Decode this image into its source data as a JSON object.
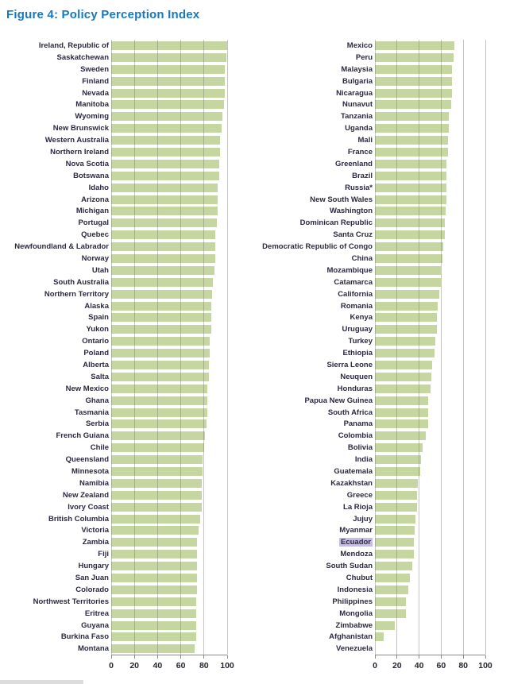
{
  "figure": {
    "title": "Figure 4: Policy Perception Index"
  },
  "colors": {
    "title": "#1878BE",
    "label": "#2B2940",
    "bar": "#C6D6A0",
    "gridline": "#6E6E6E",
    "axis_line": "#8A8A8A",
    "highlight_bg": "#C6BCE6"
  },
  "chart_data": {
    "type": "bar",
    "orientation": "horizontal",
    "title": "Figure 4: Policy Perception Index",
    "xlabel": "",
    "ylabel": "",
    "xlim": [
      0,
      100
    ],
    "ticks": [
      0,
      20,
      40,
      60,
      80,
      100
    ],
    "grid": true,
    "legend": false,
    "highlighted_category": "Ecuador",
    "panels": [
      {
        "id": "left",
        "items": [
          {
            "label": "Ireland, Republic of",
            "value": 100
          },
          {
            "label": "Saskatchewan",
            "value": 99
          },
          {
            "label": "Sweden",
            "value": 98
          },
          {
            "label": "Finland",
            "value": 98
          },
          {
            "label": "Nevada",
            "value": 98
          },
          {
            "label": "Manitoba",
            "value": 97
          },
          {
            "label": "Wyoming",
            "value": 96
          },
          {
            "label": "New Brunswick",
            "value": 95
          },
          {
            "label": "Western Australia",
            "value": 94
          },
          {
            "label": "Northern Ireland",
            "value": 94
          },
          {
            "label": "Nova Scotia",
            "value": 93
          },
          {
            "label": "Botswana",
            "value": 93
          },
          {
            "label": "Idaho",
            "value": 92
          },
          {
            "label": "Arizona",
            "value": 92
          },
          {
            "label": "Michigan",
            "value": 92
          },
          {
            "label": "Portugal",
            "value": 91
          },
          {
            "label": "Quebec",
            "value": 90
          },
          {
            "label": "Newfoundland & Labrador",
            "value": 90
          },
          {
            "label": "Norway",
            "value": 90
          },
          {
            "label": "Utah",
            "value": 89
          },
          {
            "label": "South Australia",
            "value": 88
          },
          {
            "label": "Northern Territory",
            "value": 87
          },
          {
            "label": "Alaska",
            "value": 86
          },
          {
            "label": "Spain",
            "value": 86
          },
          {
            "label": "Yukon",
            "value": 86
          },
          {
            "label": "Ontario",
            "value": 85
          },
          {
            "label": "Poland",
            "value": 85
          },
          {
            "label": "Alberta",
            "value": 84
          },
          {
            "label": "Salta",
            "value": 84
          },
          {
            "label": "New Mexico",
            "value": 83
          },
          {
            "label": "Ghana",
            "value": 83
          },
          {
            "label": "Tasmania",
            "value": 83
          },
          {
            "label": "Serbia",
            "value": 82
          },
          {
            "label": "French Guiana",
            "value": 81
          },
          {
            "label": "Chile",
            "value": 80
          },
          {
            "label": "Queensland",
            "value": 79
          },
          {
            "label": "Minnesota",
            "value": 79
          },
          {
            "label": "Namibia",
            "value": 78
          },
          {
            "label": "New Zealand",
            "value": 78
          },
          {
            "label": "Ivory Coast",
            "value": 78
          },
          {
            "label": "British Columbia",
            "value": 77
          },
          {
            "label": "Victoria",
            "value": 75
          },
          {
            "label": "Zambia",
            "value": 74
          },
          {
            "label": "Fiji",
            "value": 74
          },
          {
            "label": "Hungary",
            "value": 74
          },
          {
            "label": "San Juan",
            "value": 74
          },
          {
            "label": "Colorado",
            "value": 74
          },
          {
            "label": "Northwest Territories",
            "value": 73
          },
          {
            "label": "Eritrea",
            "value": 73
          },
          {
            "label": "Guyana",
            "value": 73
          },
          {
            "label": "Burkina Faso",
            "value": 73
          },
          {
            "label": "Montana",
            "value": 72
          }
        ]
      },
      {
        "id": "right",
        "items": [
          {
            "label": "Mexico",
            "value": 72
          },
          {
            "label": "Peru",
            "value": 71
          },
          {
            "label": "Malaysia",
            "value": 70
          },
          {
            "label": "Bulgaria",
            "value": 70
          },
          {
            "label": "Nicaragua",
            "value": 70
          },
          {
            "label": "Nunavut",
            "value": 69
          },
          {
            "label": "Tanzania",
            "value": 67
          },
          {
            "label": "Uganda",
            "value": 67
          },
          {
            "label": "Mali",
            "value": 66
          },
          {
            "label": "France",
            "value": 66
          },
          {
            "label": "Greenland",
            "value": 65
          },
          {
            "label": "Brazil",
            "value": 65
          },
          {
            "label": "Russia*",
            "value": 65
          },
          {
            "label": "New South Wales",
            "value": 65
          },
          {
            "label": "Washington",
            "value": 64
          },
          {
            "label": "Dominican Republic",
            "value": 63
          },
          {
            "label": "Santa Cruz",
            "value": 63
          },
          {
            "label": "Democratic Republic of Congo",
            "value": 62
          },
          {
            "label": "China",
            "value": 61
          },
          {
            "label": "Mozambique",
            "value": 60
          },
          {
            "label": "Catamarca",
            "value": 60
          },
          {
            "label": "California",
            "value": 58
          },
          {
            "label": "Romania",
            "value": 57
          },
          {
            "label": "Kenya",
            "value": 56
          },
          {
            "label": "Uruguay",
            "value": 56
          },
          {
            "label": "Turkey",
            "value": 55
          },
          {
            "label": "Ethiopia",
            "value": 54
          },
          {
            "label": "Sierra Leone",
            "value": 52
          },
          {
            "label": "Neuquen",
            "value": 51
          },
          {
            "label": "Honduras",
            "value": 50
          },
          {
            "label": "Papua New Guinea",
            "value": 48
          },
          {
            "label": "South Africa",
            "value": 48
          },
          {
            "label": "Panama",
            "value": 48
          },
          {
            "label": "Colombia",
            "value": 46
          },
          {
            "label": "Bolivia",
            "value": 43
          },
          {
            "label": "India",
            "value": 42
          },
          {
            "label": "Guatemala",
            "value": 41
          },
          {
            "label": "Kazakhstan",
            "value": 39
          },
          {
            "label": "Greece",
            "value": 38
          },
          {
            "label": "La Rioja",
            "value": 38
          },
          {
            "label": "Jujuy",
            "value": 37
          },
          {
            "label": "Myanmar",
            "value": 36
          },
          {
            "label": "Ecuador",
            "value": 35,
            "highlight": true
          },
          {
            "label": "Mendoza",
            "value": 35
          },
          {
            "label": "South Sudan",
            "value": 34
          },
          {
            "label": "Chubut",
            "value": 32
          },
          {
            "label": "Indonesia",
            "value": 30
          },
          {
            "label": "Philippines",
            "value": 28
          },
          {
            "label": "Mongolia",
            "value": 28
          },
          {
            "label": "Zimbabwe",
            "value": 18
          },
          {
            "label": "Afghanistan",
            "value": 8
          },
          {
            "label": "Venezuela",
            "value": 0
          }
        ]
      }
    ]
  }
}
